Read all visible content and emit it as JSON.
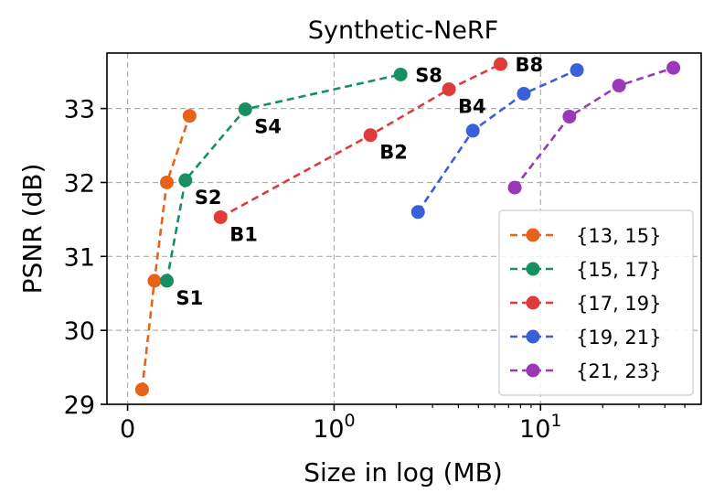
{
  "chart_data": {
    "type": "line",
    "title": "Synthetic-NeRF",
    "xlabel": "Size in log (MB)",
    "ylabel": "PSNR (dB)",
    "xscale": "symlog",
    "xlim": [
      -0.1,
      60
    ],
    "ylim": [
      29,
      33.75
    ],
    "grid": true,
    "legend_position": "lower-right",
    "yticks": [
      {
        "value": 29,
        "label": "29"
      },
      {
        "value": 30,
        "label": "30"
      },
      {
        "value": 31,
        "label": "31"
      },
      {
        "value": 32,
        "label": "32"
      },
      {
        "value": 33,
        "label": "33"
      }
    ],
    "xticks": [
      {
        "value": 0,
        "label": "0"
      },
      {
        "value": 1,
        "label": "10",
        "exp": "0"
      },
      {
        "value": 10,
        "label": "10",
        "exp": "1"
      }
    ],
    "series": [
      {
        "name": "{13, 15}",
        "color": "#e8631a",
        "x": [
          0.07,
          0.13,
          0.19,
          0.3
        ],
        "y": [
          29.2,
          30.67,
          32.0,
          32.9
        ],
        "labels": [
          "",
          "",
          "",
          ""
        ]
      },
      {
        "name": "{15, 17}",
        "color": "#178f63",
        "x": [
          0.19,
          0.28,
          0.57,
          2.1
        ],
        "y": [
          30.67,
          32.03,
          32.99,
          33.46
        ],
        "labels": [
          "S1",
          "S2",
          "S4",
          "S8"
        ]
      },
      {
        "name": "{17, 19}",
        "color": "#de3b3b",
        "x": [
          0.45,
          1.5,
          3.6,
          6.4
        ],
        "y": [
          31.53,
          32.64,
          33.26,
          33.6
        ],
        "labels": [
          "B1",
          "B2",
          "B4",
          "B8"
        ]
      },
      {
        "name": "{19, 21}",
        "color": "#3b5fd8",
        "x": [
          2.55,
          4.7,
          8.3,
          15.0
        ],
        "y": [
          31.6,
          32.7,
          33.2,
          33.52
        ],
        "labels": [
          "",
          "",
          "",
          ""
        ]
      },
      {
        "name": "{21, 23}",
        "color": "#9b38b8",
        "x": [
          7.5,
          13.8,
          24.0,
          44.0
        ],
        "y": [
          31.93,
          32.89,
          33.31,
          33.55
        ],
        "labels": [
          "",
          "",
          "",
          ""
        ]
      }
    ]
  }
}
